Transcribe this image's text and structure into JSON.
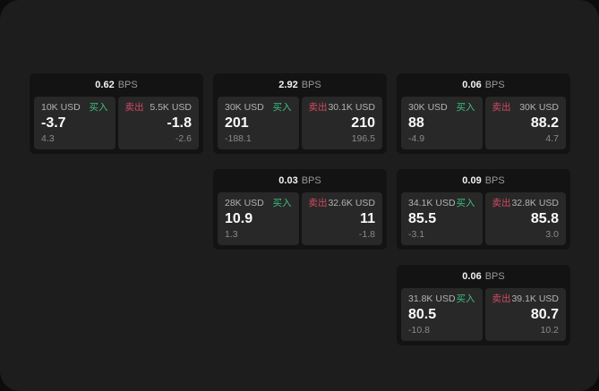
{
  "labels": {
    "bps_unit": "BPS",
    "buy": "买入",
    "sell": "卖出"
  },
  "theme": {
    "panel_bg": "#1d1d1d",
    "card_bg": "#131313",
    "tile_bg": "#282828",
    "buy_color": "#3cbf80",
    "sell_color": "#d04a62"
  },
  "cards": [
    {
      "bps": "0.62",
      "buy": {
        "amount": "10K USD",
        "value": "-3.7",
        "delta": "4.3"
      },
      "sell": {
        "amount": "5.5K USD",
        "value": "-1.8",
        "delta": "-2.6"
      }
    },
    {
      "bps": "2.92",
      "buy": {
        "amount": "30K USD",
        "value": "201",
        "delta": "-188.1"
      },
      "sell": {
        "amount": "30.1K USD",
        "value": "210",
        "delta": "196.5"
      }
    },
    {
      "bps": "0.06",
      "buy": {
        "amount": "30K USD",
        "value": "88",
        "delta": "-4.9"
      },
      "sell": {
        "amount": "30K USD",
        "value": "88.2",
        "delta": "4.7"
      }
    },
    {
      "bps": "0.03",
      "buy": {
        "amount": "28K USD",
        "value": "10.9",
        "delta": "1.3"
      },
      "sell": {
        "amount": "32.6K USD",
        "value": "11",
        "delta": "-1.8"
      }
    },
    {
      "bps": "0.09",
      "buy": {
        "amount": "34.1K USD",
        "value": "85.5",
        "delta": "-3.1"
      },
      "sell": {
        "amount": "32.8K USD",
        "value": "85.8",
        "delta": "3.0"
      }
    },
    {
      "bps": "0.06",
      "buy": {
        "amount": "31.8K USD",
        "value": "80.5",
        "delta": "-10.8"
      },
      "sell": {
        "amount": "39.1K USD",
        "value": "80.7",
        "delta": "10.2"
      }
    }
  ]
}
